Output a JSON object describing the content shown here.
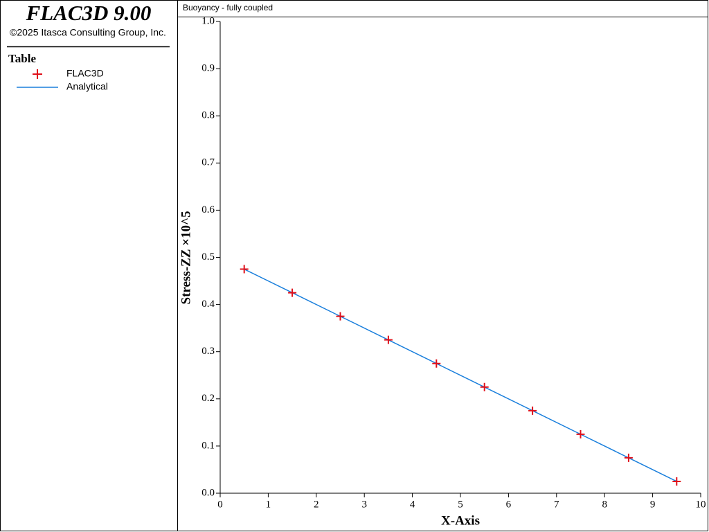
{
  "app": {
    "title": "FLAC3D 9.00",
    "copyright": "©2025 Itasca Consulting Group, Inc."
  },
  "chart_data": {
    "type": "line",
    "title": "Buoyancy - fully coupled",
    "legend_title": "Table",
    "x_label": "X-Axis",
    "y_label": "Stress-ZZ ×10^5",
    "x": [
      0.5,
      1.5,
      2.5,
      3.5,
      4.5,
      5.5,
      6.5,
      7.5,
      8.5,
      9.5
    ],
    "series": [
      {
        "name": "FLAC3D",
        "color": "#e0101a",
        "mode": "markers",
        "values": [
          0.475,
          0.425,
          0.375,
          0.325,
          0.275,
          0.225,
          0.175,
          0.125,
          0.075,
          0.025
        ]
      },
      {
        "name": "Analytical",
        "color": "#1a7fdc",
        "mode": "line",
        "values": [
          0.475,
          0.425,
          0.375,
          0.325,
          0.275,
          0.225,
          0.175,
          0.125,
          0.075,
          0.025
        ]
      }
    ],
    "xlim": [
      0,
      10
    ],
    "xticks": [
      0,
      1,
      2,
      3,
      4,
      5,
      6,
      7,
      8,
      9,
      10
    ],
    "ylim": [
      0,
      1
    ],
    "yticks": [
      {
        "value": 0,
        "label": "0.0"
      },
      0.1,
      0.2,
      0.3,
      0.4,
      0.5,
      0.6,
      0.7,
      0.8,
      0.9,
      {
        "value": 1,
        "label": "1.0"
      }
    ]
  }
}
